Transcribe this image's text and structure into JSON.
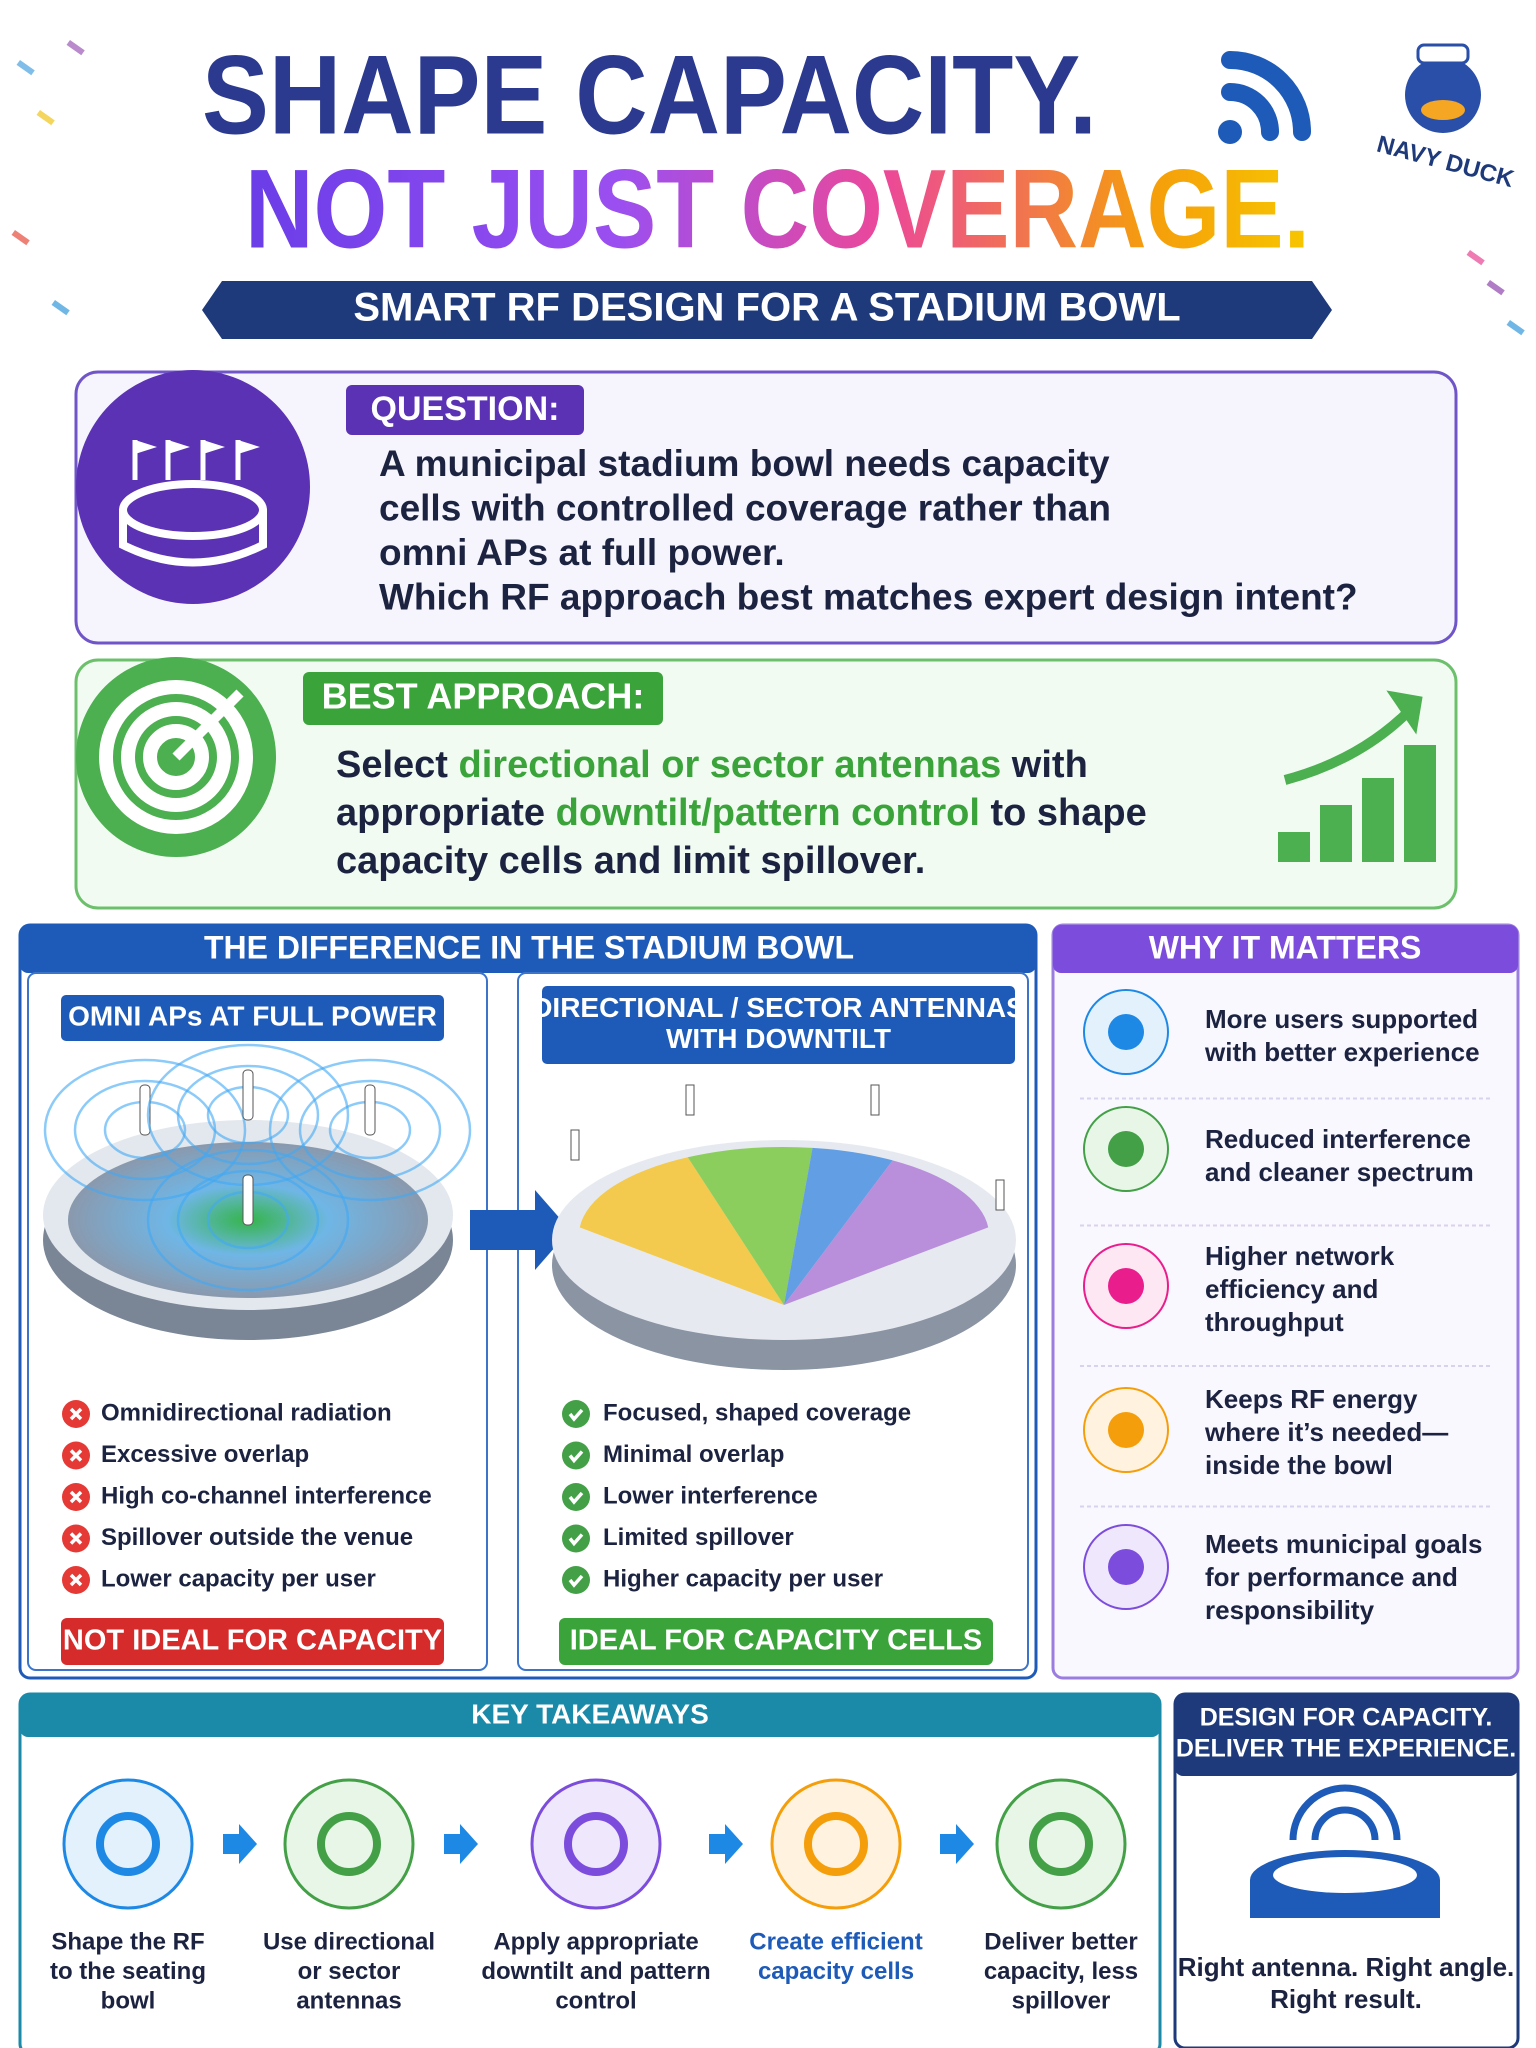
{
  "header": {
    "title_line1": "SHAPE CAPACITY.",
    "title_line2": "NOT JUST COVERAGE.",
    "subtitle": "SMART RF DESIGN FOR A STADIUM BOWL",
    "logo": "NAVY DUCK"
  },
  "question": {
    "label": "QUESTION:",
    "lines": [
      "A municipal stadium bowl needs capacity",
      "cells with controlled coverage rather than",
      "omni APs at full power.",
      "Which RF approach best matches expert design intent?"
    ]
  },
  "best_approach": {
    "label": "BEST APPROACH:",
    "lines": [
      [
        {
          "text": "Select ",
          "color": "#1c2340"
        },
        {
          "text": "directional or sector antennas",
          "color": "#3aa33a"
        },
        {
          "text": " with",
          "color": "#1c2340"
        }
      ],
      [
        {
          "text": "appropriate ",
          "color": "#1c2340"
        },
        {
          "text": "downtilt/pattern control",
          "color": "#3aa33a"
        },
        {
          "text": " to shape",
          "color": "#1c2340"
        }
      ],
      [
        {
          "text": "capacity cells and limit spillover.",
          "color": "#1c2340"
        }
      ]
    ]
  },
  "difference": {
    "title": "THE DIFFERENCE IN THE STADIUM BOWL",
    "omni": {
      "label_lines": [
        "OMNI APs AT FULL POWER"
      ],
      "items": [
        "Omnidirectional radiation",
        "Excessive overlap",
        "High co-channel interference",
        "Spillover outside the venue",
        "Lower capacity per user"
      ],
      "verdict": "NOT IDEAL FOR CAPACITY"
    },
    "directional": {
      "label_lines": [
        "DIRECTIONAL / SECTOR ANTENNAS",
        "WITH DOWNTILT"
      ],
      "items": [
        "Focused, shaped coverage",
        "Minimal overlap",
        "Lower interference",
        "Limited spillover",
        "Higher capacity per user"
      ],
      "verdict": "IDEAL FOR CAPACITY CELLS"
    }
  },
  "why_it_matters": {
    "title": "WHY IT MATTERS",
    "items": [
      [
        "More users supported",
        "with better experience"
      ],
      [
        "Reduced interference",
        "and cleaner spectrum"
      ],
      [
        "Higher network",
        "efficiency and",
        "throughput"
      ],
      [
        "Keeps RF energy",
        "where it’s needed—",
        "inside the bowl"
      ],
      [
        "Meets municipal goals",
        "for performance and",
        "responsibility"
      ]
    ]
  },
  "key_takeaways": {
    "title": "KEY TAKEAWAYS",
    "steps": [
      [
        "Shape the RF",
        "to the seating",
        "bowl"
      ],
      [
        "Use directional",
        "or sector",
        "antennas"
      ],
      [
        "Apply appropriate",
        "downtilt and pattern",
        "control"
      ],
      [
        "Create efficient",
        "capacity cells"
      ],
      [
        "Deliver better",
        "capacity, less",
        "spillover"
      ]
    ]
  },
  "design_box": {
    "title_lines": [
      "DESIGN FOR CAPACITY.",
      "DELIVER THE EXPERIENCE."
    ],
    "tagline_lines": [
      "Right antenna. Right angle.",
      "Right result."
    ]
  }
}
